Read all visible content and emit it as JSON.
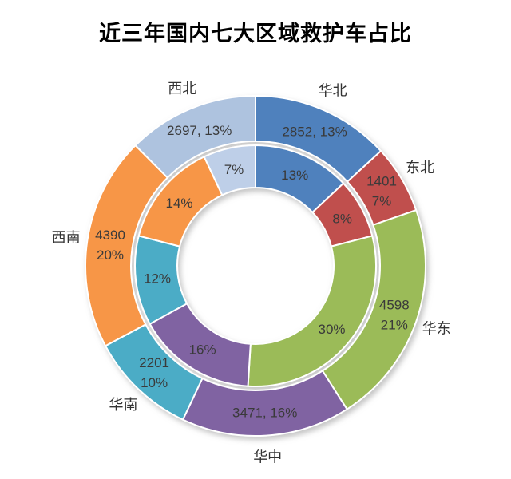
{
  "header": {
    "title": "近三年国内七大区域救护车占比"
  },
  "chart_data": {
    "type": "pie",
    "subtype": "double_donut",
    "title": "近三年国内七大区域救护车占比",
    "legend_position": "none",
    "grid": false,
    "categories": [
      "华北",
      "东北",
      "华东",
      "华中",
      "华南",
      "西南",
      "西北"
    ],
    "series": [
      {
        "name": "outer_ring",
        "values": [
          2852,
          1401,
          4598,
          3471,
          2201,
          4390,
          2697
        ],
        "percents": [
          13,
          7,
          21,
          16,
          10,
          20,
          13
        ],
        "label_lines": [
          [
            "2852, 13%"
          ],
          [
            "1401",
            "7%"
          ],
          [
            "4598",
            "21%"
          ],
          [
            "3471, 16%"
          ],
          [
            "2201",
            "10%"
          ],
          [
            "4390",
            "20%"
          ],
          [
            "2697, 13%"
          ]
        ]
      },
      {
        "name": "inner_ring",
        "percents": [
          13,
          8,
          30,
          16,
          12,
          14,
          7
        ],
        "label_lines": [
          [
            "13%"
          ],
          [
            "8%"
          ],
          [
            "30%"
          ],
          [
            "16%"
          ],
          [
            "12%"
          ],
          [
            "14%"
          ],
          [
            "7%"
          ]
        ]
      }
    ],
    "colors": {
      "outer": [
        "#4f81bd",
        "#c0504d",
        "#9bbb59",
        "#8064a2",
        "#4bacc6",
        "#f79646",
        "#aec3df"
      ],
      "inner": [
        "#4f81bd",
        "#c0504d",
        "#9bbb59",
        "#8064a2",
        "#4bacc6",
        "#f79646",
        "#becfe8"
      ],
      "separator": "#ffffff",
      "label": "#3a3a3a",
      "title": "#000000"
    }
  }
}
